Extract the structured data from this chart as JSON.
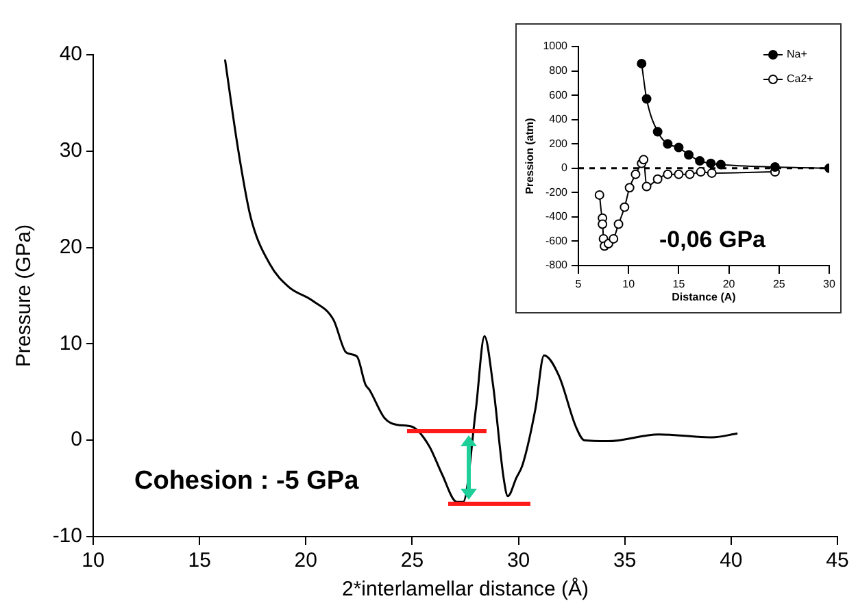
{
  "chart_data": [
    {
      "type": "line",
      "xlabel": "2*interlamellar distance (Å)",
      "ylabel": "Pressure (GPa)",
      "xlim": [
        10,
        45
      ],
      "xticks": [
        10,
        15,
        20,
        25,
        30,
        35,
        40,
        45
      ],
      "ylim": [
        -10,
        40
      ],
      "yticks": [
        -10,
        0,
        10,
        20,
        30,
        40
      ],
      "grid": false,
      "legend": false,
      "marker": "none",
      "line_style": "solid",
      "annotations": [
        "Cohesion : -5 GPa"
      ],
      "series": [
        {
          "color": "#000000",
          "x": [
            16.2,
            16.8,
            17.4,
            18.3,
            19.2,
            20.3,
            21.3,
            21.9,
            22.4,
            22.8,
            23.0,
            23.7,
            24.3,
            25.0,
            25.8,
            26.4,
            27.1,
            27.4,
            28.0,
            28.4,
            28.8,
            29.3,
            29.5,
            29.9,
            30.2,
            30.8,
            31.2,
            31.9,
            32.7,
            33.1,
            34.2,
            36.6,
            39.1,
            40.3
          ],
          "values": [
            39.5,
            30.4,
            23.2,
            18.3,
            15.9,
            14.5,
            12.5,
            9.1,
            8.7,
            5.8,
            5.2,
            2.3,
            1.6,
            1.4,
            -0.6,
            -3.5,
            -6.4,
            -6.4,
            3.3,
            10.8,
            5.8,
            -3.9,
            -5.8,
            -3.9,
            -2.5,
            3.3,
            8.8,
            6.7,
            1.4,
            0,
            -0.1,
            0.6,
            0.3,
            0.7
          ]
        }
      ]
    },
    {
      "type": "line",
      "xlabel": "Distance (A)",
      "ylabel": "Pression (atm)",
      "xlim": [
        5,
        30
      ],
      "xticks": [
        5,
        10,
        15,
        20,
        25,
        30
      ],
      "ylim": [
        -800,
        1000
      ],
      "yticks": [
        -800,
        -600,
        -400,
        -200,
        0,
        200,
        400,
        600,
        800,
        1000
      ],
      "grid": false,
      "legend": "top right",
      "marker": "circle",
      "line_style": "solid",
      "annotations": [
        "-0,06 GPa"
      ],
      "ref_lines": [
        {
          "axis": "y",
          "value": 0,
          "color": "#000000",
          "line_style": "dashed"
        }
      ],
      "series": [
        {
          "name": "Na+",
          "color": "#000000",
          "x": [
            11.3,
            11.8,
            12.9,
            13.9,
            15.0,
            16.0,
            17.1,
            18.2,
            19.2,
            24.6,
            30
          ],
          "values": [
            860,
            570,
            300,
            200,
            170,
            110,
            60,
            40,
            30,
            10,
            0
          ]
        },
        {
          "name": "Ca2+",
          "color": "#ffffff",
          "x": [
            7.1,
            7.4,
            7.4,
            7.5,
            7.6,
            8.0,
            8.5,
            9.0,
            9.6,
            10.1,
            10.7,
            11.3,
            11.5,
            11.8,
            12.9,
            13.9,
            15.0,
            16.1,
            17.2,
            18.3,
            24.6
          ],
          "values": [
            -220,
            -410,
            -460,
            -580,
            -640,
            -620,
            -580,
            -460,
            -320,
            -160,
            -50,
            40,
            70,
            -150,
            -90,
            -50,
            -50,
            -50,
            -30,
            -40,
            -30
          ]
        }
      ]
    }
  ]
}
